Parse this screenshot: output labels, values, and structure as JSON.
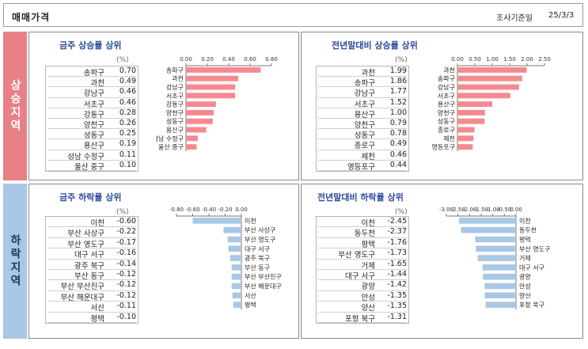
{
  "header": {
    "title": "매매가격",
    "date_label": "조사기준일",
    "date_value": "25/3/3"
  },
  "side": {
    "up_label": "상승지역",
    "down_label": "하락지역"
  },
  "unit_label": "(%)",
  "colors": {
    "rise": "#f48a90",
    "fall": "#a9c7e6",
    "title": "#2b4a9a",
    "up_tab": "#e88186",
    "down_tab": "#a9c7e6"
  },
  "chart_data": [
    {
      "type": "bar",
      "title": "금주 상승률 상위",
      "categories": [
        "송파구",
        "과천",
        "강남구",
        "서초구",
        "강동구",
        "양천구",
        "성동구",
        "용산구",
        "성남 수정구",
        "울산 중구"
      ],
      "values": [
        0.7,
        0.49,
        0.46,
        0.46,
        0.28,
        0.26,
        0.25,
        0.19,
        0.11,
        0.1
      ],
      "value_labels": [
        "0.70",
        "0.49",
        "0.46",
        "0.46",
        "0.28",
        "0.26",
        "0.25",
        "0.19",
        "0.11",
        "0.10"
      ],
      "xlim": [
        0,
        0.8
      ],
      "ticks": [
        0,
        0.2,
        0.4,
        0.6,
        0.8
      ],
      "tick_labels": [
        "0.00",
        "0.20",
        "0.40",
        "0.60",
        "0.80"
      ],
      "color": "#f48a90"
    },
    {
      "type": "bar",
      "title": "전년말대비 상승률 상위",
      "categories": [
        "과천",
        "송파구",
        "강남구",
        "서초구",
        "용산구",
        "양천구",
        "성동구",
        "종로구",
        "제천",
        "영등포구"
      ],
      "values": [
        1.99,
        1.86,
        1.77,
        1.52,
        1.0,
        0.79,
        0.78,
        0.49,
        0.46,
        0.44
      ],
      "value_labels": [
        "1.99",
        "1.86",
        "1.77",
        "1.52",
        "1.00",
        "0.79",
        "0.78",
        "0.49",
        "0.46",
        "0.44"
      ],
      "xlim": [
        0,
        2.5
      ],
      "ticks": [
        0,
        0.5,
        1.0,
        1.5,
        2.0,
        2.5
      ],
      "tick_labels": [
        "0.00",
        "0.50",
        "1.00",
        "1.50",
        "2.00",
        "2.50"
      ],
      "color": "#f48a90"
    },
    {
      "type": "bar",
      "title": "금주 하락률 상위",
      "categories": [
        "이천",
        "부산 사상구",
        "부산 영도구",
        "대구 서구",
        "광주 북구",
        "부산 동구",
        "부산 부산진구",
        "부산 해운대구",
        "서산",
        "평택"
      ],
      "values": [
        -0.6,
        -0.22,
        -0.17,
        -0.16,
        -0.14,
        -0.12,
        -0.12,
        -0.12,
        -0.11,
        -0.1
      ],
      "value_labels": [
        "-0.60",
        "-0.22",
        "-0.17",
        "-0.16",
        "-0.14",
        "-0.12",
        "-0.12",
        "-0.12",
        "-0.11",
        "-0.10"
      ],
      "xlim": [
        -0.8,
        0
      ],
      "ticks": [
        -0.8,
        -0.6,
        -0.4,
        -0.2,
        0
      ],
      "tick_labels": [
        "-0.80",
        "-0.60",
        "-0.40",
        "-0.20",
        "0.00"
      ],
      "color": "#a9c7e6"
    },
    {
      "type": "bar",
      "title": "전년말대비 하락률 상위",
      "categories": [
        "이천",
        "동두천",
        "평택",
        "부산 영도구",
        "거제",
        "대구 서구",
        "광양",
        "안성",
        "양산",
        "포항 북구"
      ],
      "values": [
        -2.45,
        -2.37,
        -1.76,
        -1.73,
        -1.65,
        -1.44,
        -1.42,
        -1.35,
        -1.35,
        -1.31
      ],
      "value_labels": [
        "-2.45",
        "-2.37",
        "-1.76",
        "-1.73",
        "-1.65",
        "-1.44",
        "-1.42",
        "-1.35",
        "-1.35",
        "-1.31"
      ],
      "xlim": [
        -3.0,
        0
      ],
      "ticks": [
        -3.0,
        -2.5,
        -2.0,
        -1.5,
        -1.0,
        -0.5,
        0
      ],
      "tick_labels": [
        "-3.00",
        "-2.50",
        "-2.00",
        "-1.50",
        "-1.00",
        "-0.50",
        "0.00"
      ],
      "color": "#a9c7e6"
    }
  ]
}
